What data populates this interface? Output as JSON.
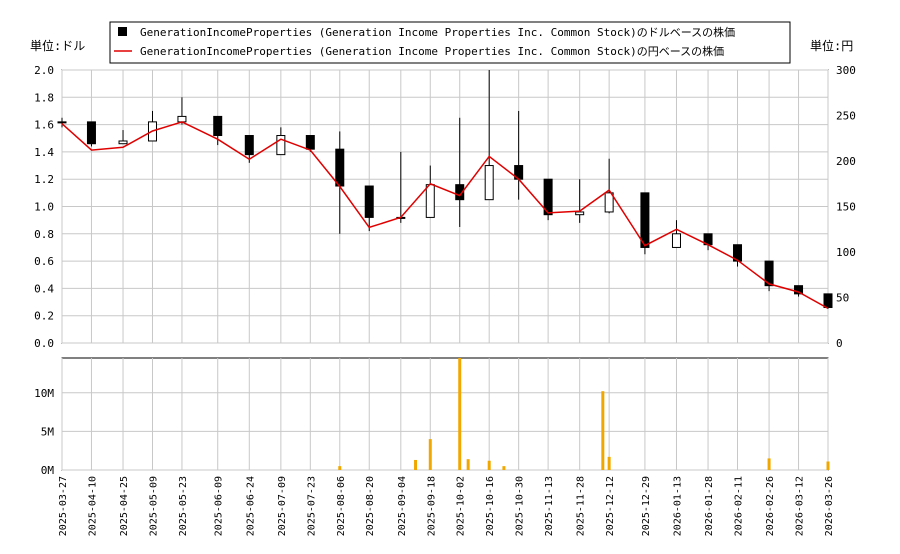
{
  "chart_data": [
    {
      "type": "candlestick+line",
      "y_left_label": "単位:ドル",
      "y_right_label": "単位:円",
      "ylim_left": [
        0,
        2.0
      ],
      "ylim_right": [
        0,
        300
      ],
      "yticks_left": [
        "0.0",
        "0.2",
        "0.4",
        "0.6",
        "0.8",
        "1.0",
        "1.2",
        "1.4",
        "1.6",
        "1.8",
        "2.0"
      ],
      "yticks_right": [
        "0",
        "50",
        "100",
        "150",
        "200",
        "250",
        "300"
      ],
      "legend": [
        {
          "label": "GenerationIncomeProperties (Generation Income Properties Inc. Common Stock)のドルベースの株価",
          "color": "#000000",
          "marker": "square"
        },
        {
          "label": "GenerationIncomeProperties (Generation Income Properties Inc. Common Stock)の円ベースの株価",
          "color": "#e00000",
          "marker": "line"
        }
      ],
      "legend_position": "top-center",
      "x_dates": [
        "2025-03-27",
        "2025-04-10",
        "2025-04-25",
        "2025-05-09",
        "2025-05-23",
        "2025-06-09",
        "2025-06-24",
        "2025-07-09",
        "2025-07-23",
        "2025-08-06",
        "2025-08-20",
        "2025-09-04",
        "2025-09-18",
        "2025-10-02",
        "2025-10-16",
        "2025-10-30",
        "2025-11-13",
        "2025-11-28",
        "2025-12-12",
        "2025-12-29",
        "2026-01-13",
        "2026-01-28",
        "2026-02-11",
        "2026-02-26",
        "2026-03-12",
        "2026-03-26"
      ],
      "series": [
        {
          "name": "GenerationIncomeProperties (Generation Income Properties Inc. Common Stock)のドルベースの株価",
          "x": [
            "2025-03-27",
            "2025-04-10",
            "2025-04-25",
            "2025-05-09",
            "2025-05-23",
            "2025-06-09",
            "2025-06-24",
            "2025-07-09",
            "2025-07-23",
            "2025-08-06",
            "2025-08-20",
            "2025-09-04",
            "2025-09-18",
            "2025-10-02",
            "2025-10-16",
            "2025-10-30",
            "2025-11-13",
            "2025-11-28",
            "2025-12-12",
            "2025-12-29",
            "2026-01-13",
            "2026-01-28",
            "2026-02-11",
            "2026-02-26",
            "2026-03-12",
            "2026-03-26"
          ],
          "close": [
            1.62,
            1.46,
            1.48,
            1.62,
            1.66,
            1.52,
            1.38,
            1.52,
            1.42,
            1.15,
            0.92,
            0.92,
            1.16,
            1.05,
            1.3,
            1.2,
            0.94,
            0.96,
            1.1,
            0.7,
            0.8,
            0.72,
            0.6,
            0.42,
            0.36,
            0.26
          ],
          "high": [
            1.65,
            1.52,
            1.56,
            1.7,
            1.8,
            1.6,
            1.44,
            1.58,
            1.48,
            1.55,
            1.1,
            1.4,
            1.3,
            1.65,
            2.0,
            1.7,
            1.1,
            1.2,
            1.35,
            0.75,
            0.9,
            0.78,
            0.62,
            0.48,
            0.38,
            0.3
          ],
          "low": [
            1.58,
            1.44,
            1.46,
            1.58,
            1.6,
            1.45,
            1.32,
            1.45,
            1.4,
            0.8,
            0.82,
            0.88,
            1.02,
            0.85,
            1.15,
            1.05,
            0.9,
            0.88,
            0.95,
            0.65,
            0.72,
            0.68,
            0.56,
            0.38,
            0.34,
            0.25
          ]
        },
        {
          "name": "GenerationIncomeProperties (Generation Income Properties Inc. Common Stock)の円ベースの株価",
          "x": [
            "2025-03-27",
            "2025-04-10",
            "2025-04-25",
            "2025-05-09",
            "2025-05-23",
            "2025-06-09",
            "2025-06-24",
            "2025-07-09",
            "2025-07-23",
            "2025-08-06",
            "2025-08-20",
            "2025-09-04",
            "2025-09-18",
            "2025-10-02",
            "2025-10-16",
            "2025-10-30",
            "2025-11-13",
            "2025-11-28",
            "2025-12-12",
            "2025-12-29",
            "2026-01-13",
            "2026-01-28",
            "2026-02-11",
            "2026-02-26",
            "2026-03-12",
            "2026-03-26"
          ],
          "values": [
            241,
            212,
            215,
            233,
            243,
            224,
            202,
            224,
            212,
            172,
            127,
            138,
            175,
            162,
            205,
            180,
            143,
            145,
            168,
            107,
            125,
            108,
            91,
            65,
            56,
            38
          ]
        }
      ]
    },
    {
      "type": "bar",
      "series_name": "volume",
      "ylim": [
        0,
        14500000
      ],
      "yticks": [
        "0M",
        "5M",
        "10M"
      ],
      "x": [
        "2025-08-06",
        "2025-09-11",
        "2025-09-18",
        "2025-10-02",
        "2025-10-06",
        "2025-10-16",
        "2025-10-23",
        "2025-12-09",
        "2025-12-12",
        "2026-02-26",
        "2026-03-26"
      ],
      "values": [
        500000,
        1300000,
        4000000,
        14500000,
        1400000,
        1200000,
        500000,
        10200000,
        1700000,
        1500000,
        1100000
      ]
    }
  ]
}
